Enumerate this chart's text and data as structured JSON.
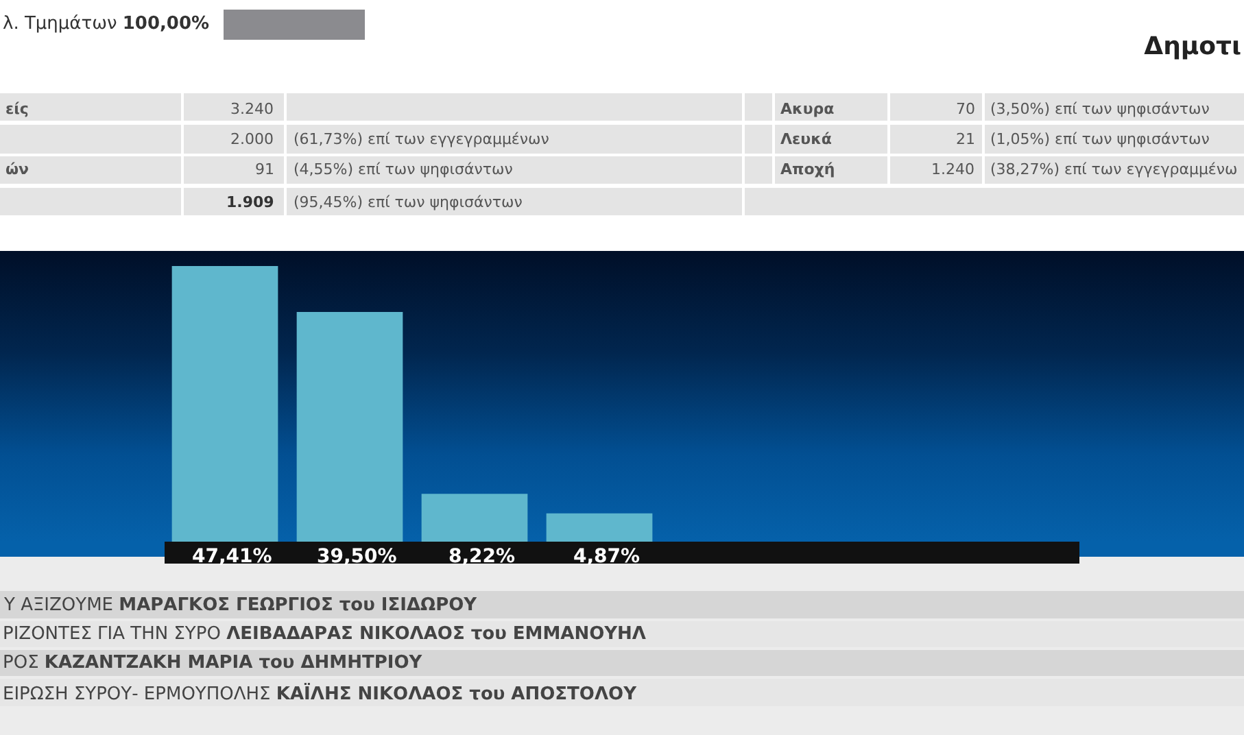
{
  "chart_data": {
    "type": "bar",
    "title": "Δημοτι",
    "categories": [
      null,
      null,
      null,
      null
    ],
    "values": [
      47.41,
      39.5,
      8.22,
      4.87
    ],
    "value_labels": [
      "47,41%",
      "39,50%",
      "8,22%",
      "4,87%"
    ],
    "color": "#5fb7cd",
    "ylim": [
      0,
      50
    ],
    "annotations": [
      "λ. Τμημάτων",
      "100,00%",
      "είς",
      "3.240",
      "Ακυρα",
      "70",
      "(3,50%) επί των ψηφισάντων",
      "2.000",
      "(61,73%) επί των εγγεγραμμένων",
      "Λευκά",
      "21",
      "(1,05%) επί των ψηφισάντων",
      "ών",
      "91",
      "(4,55%) επί των ψηφισάντων",
      "Αποχή",
      "1.240",
      "(38,27%) επί των εγγεγραμμένω",
      "1.909",
      "(95,45%) επί των ψηφισάντων",
      "Υ ΑΞΙΖΟΥΜΕ",
      "ΜΑΡΑΓΚΟΣ ΓΕΩΡΓΙΟΣ του ΙΣΙΔΩΡΟΥ",
      "ΡΙΖΟΝΤΕΣ ΓΙΑ ΤΗΝ ΣΥΡΟ",
      "ΛΕΙΒΑΔΑΡΑΣ ΝΙΚΟΛΑΟΣ του ΕΜΜΑΝΟΥΗΛ",
      "ΡΟΣ",
      "ΚΑΖΑΝΤΖΑΚΗ ΜΑΡΙΑ του ΔΗΜΗΤΡΙΟΥ",
      "ΕΙΡΩΣΗ ΣΥΡΟΥ- ΕΡΜΟΥΠΟΛΗΣ",
      "ΚΑΪΛΗΣ ΝΙΚΟΛΑΟΣ του ΑΠΟΣΤΟΛΟΥ"
    ]
  }
}
